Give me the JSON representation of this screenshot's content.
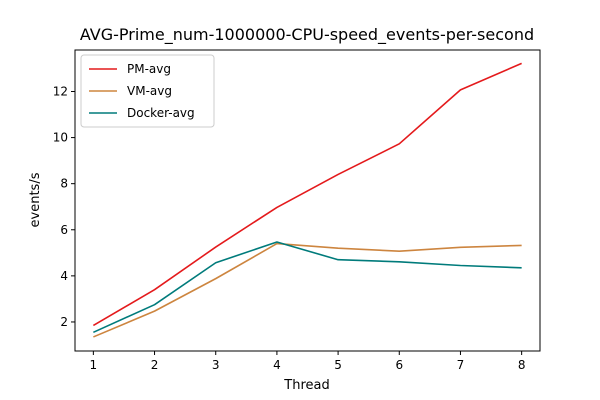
{
  "chart_data": {
    "type": "line",
    "title": "AVG-Prime_num-1000000-CPU-speed_events-per-second",
    "xlabel": "Thread",
    "ylabel": "events/s",
    "x": [
      1,
      2,
      3,
      4,
      5,
      6,
      7,
      8
    ],
    "xlim": [
      0.7,
      8.3
    ],
    "ylim": [
      0.74,
      13.8
    ],
    "xticks": [
      "1",
      "2",
      "3",
      "4",
      "5",
      "6",
      "7",
      "8"
    ],
    "yticks": [
      2,
      4,
      6,
      8,
      10,
      12
    ],
    "grid": false,
    "legend_position": "top-left",
    "series": [
      {
        "name": "PM-avg",
        "color": "#e41a1c",
        "values": [
          1.85,
          3.4,
          5.25,
          6.97,
          8.4,
          9.73,
          12.07,
          13.22
        ]
      },
      {
        "name": "VM-avg",
        "color": "#cd853f",
        "values": [
          1.35,
          2.47,
          3.88,
          5.4,
          5.2,
          5.07,
          5.24,
          5.32
        ]
      },
      {
        "name": "Docker-avg",
        "color": "#007b7b",
        "values": [
          1.55,
          2.75,
          4.57,
          5.47,
          4.7,
          4.61,
          4.45,
          4.35
        ]
      }
    ]
  }
}
